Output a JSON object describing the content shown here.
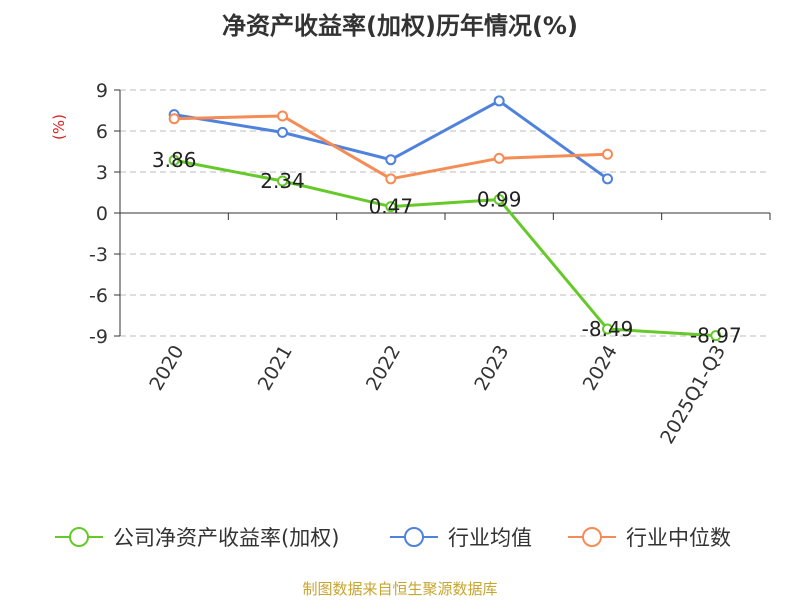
{
  "title": "净资产收益率(加权)历年情况(%)",
  "footer": "制图数据来自恒生聚源数据库",
  "colors": {
    "roe": "#66c92a",
    "avg": "#4f82dd",
    "median": "#f58b55",
    "unit": "#e02020",
    "grid": "#bdbdbd",
    "axis": "#333333"
  },
  "chart_data": {
    "type": "line",
    "title": "净资产收益率(加权)历年情况(%)",
    "ylabel": "(%)",
    "xlabel": "",
    "ylim": [
      -9,
      9
    ],
    "yticks": [
      9,
      6,
      3,
      0,
      -3,
      -6,
      -9
    ],
    "grid": "horizontal-dashed",
    "legend_position": "bottom",
    "categories": [
      "2020",
      "2021",
      "2022",
      "2023",
      "2024",
      "2025Q1-Q3"
    ],
    "series": [
      {
        "name": "公司净资产收益率(加权)",
        "color": "#66c92a",
        "values": [
          3.86,
          2.34,
          0.47,
          0.99,
          -8.49,
          -8.97
        ],
        "labels": [
          "3.86",
          "2.34",
          "0.47",
          "0.99",
          "-8.49",
          "-8.97"
        ]
      },
      {
        "name": "行业均值",
        "color": "#4f82dd",
        "values": [
          7.2,
          5.9,
          3.9,
          8.2,
          2.5,
          null
        ]
      },
      {
        "name": "行业中位数",
        "color": "#f58b55",
        "values": [
          6.9,
          7.1,
          2.5,
          4.0,
          4.3,
          null
        ]
      }
    ]
  }
}
